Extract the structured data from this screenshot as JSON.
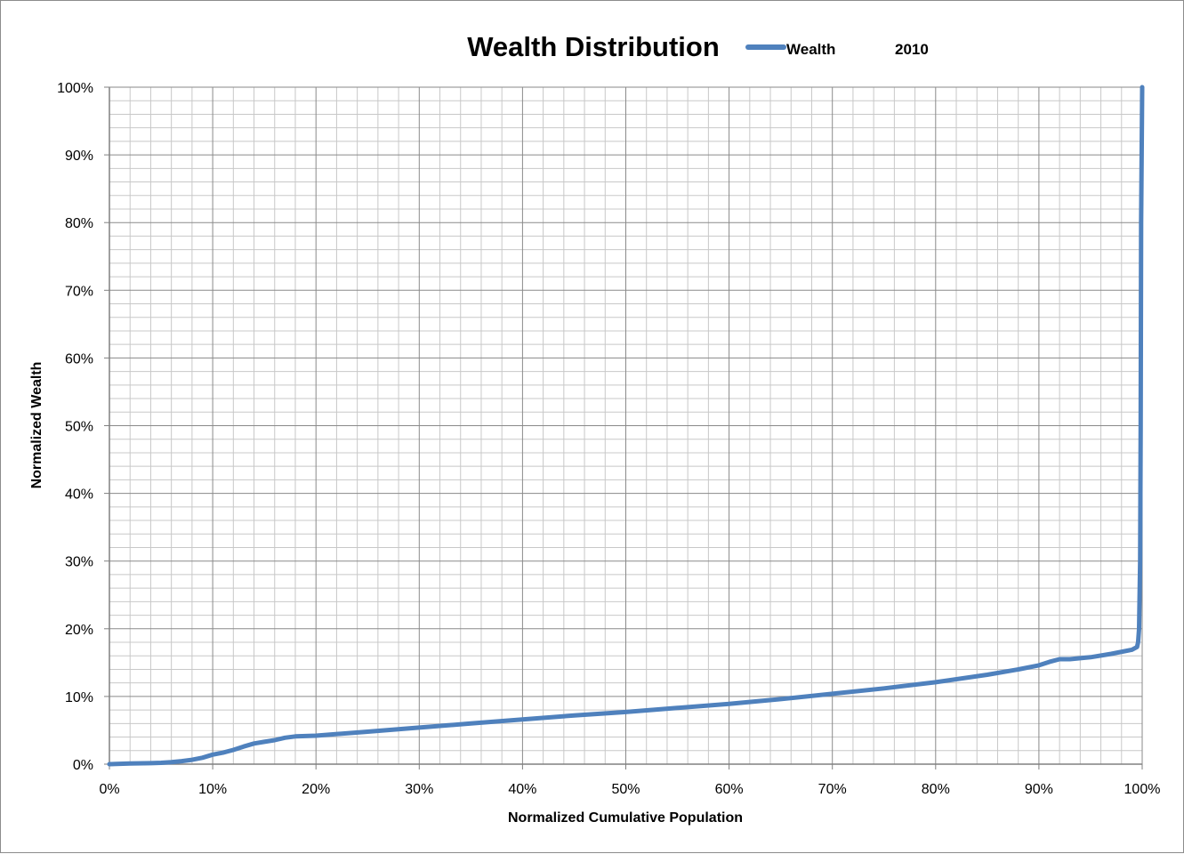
{
  "chart_data": {
    "type": "line",
    "title": "Wealth Distribution",
    "subtitle": "2010",
    "xlabel": "Normalized Cumulative Population",
    "ylabel": "Normalized Wealth",
    "xlim": [
      0,
      100
    ],
    "ylim": [
      0,
      100
    ],
    "x_ticks": [
      "0%",
      "10%",
      "20%",
      "30%",
      "40%",
      "50%",
      "60%",
      "70%",
      "80%",
      "90%",
      "100%"
    ],
    "y_ticks": [
      "0%",
      "10%",
      "20%",
      "30%",
      "40%",
      "50%",
      "60%",
      "70%",
      "80%",
      "90%",
      "100%"
    ],
    "grid": true,
    "legend_position": "top",
    "series": [
      {
        "name": "Wealth",
        "color": "#4f81bd",
        "x": [
          0,
          2,
          4,
          5,
          6,
          7,
          8,
          9,
          10,
          11,
          12,
          13,
          14,
          15,
          16,
          17,
          18,
          20,
          25,
          30,
          35,
          40,
          45,
          50,
          55,
          60,
          65,
          70,
          75,
          80,
          85,
          88,
          90,
          91,
          92,
          93,
          95,
          97,
          99,
          99.5,
          99.6,
          99.7,
          99.8,
          99.85,
          99.9,
          100
        ],
        "y": [
          0,
          0.1,
          0.15,
          0.2,
          0.3,
          0.45,
          0.65,
          0.95,
          1.4,
          1.7,
          2.1,
          2.6,
          3.05,
          3.3,
          3.55,
          3.9,
          4.1,
          4.2,
          4.8,
          5.4,
          6.0,
          6.6,
          7.2,
          7.7,
          8.3,
          8.9,
          9.6,
          10.4,
          11.2,
          12.1,
          13.2,
          14.0,
          14.6,
          15.1,
          15.5,
          15.5,
          15.8,
          16.3,
          16.9,
          17.3,
          18.0,
          20.0,
          30.0,
          50.0,
          80.0,
          100.0
        ]
      }
    ]
  }
}
